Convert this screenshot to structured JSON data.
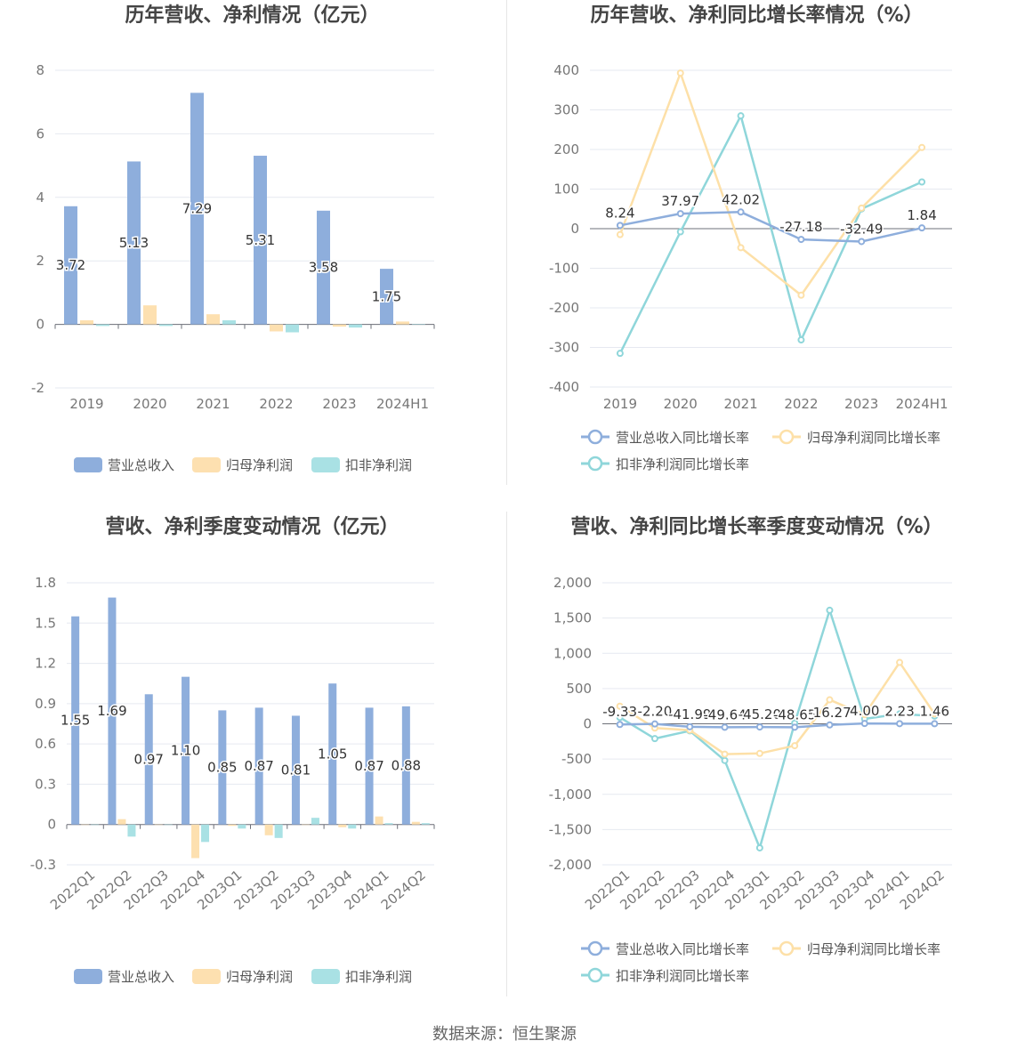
{
  "source_text": "数据来源：恒生聚源",
  "chart_data": [
    {
      "type": "bar",
      "title": "历年营收、净利情况（亿元）",
      "categories": [
        "2019",
        "2020",
        "2021",
        "2022",
        "2023",
        "2024H1"
      ],
      "ylim": [
        -2,
        8
      ],
      "yticks": [
        "-2",
        "0",
        "2",
        "4",
        "6",
        "8"
      ],
      "series": [
        {
          "name": "营业总收入",
          "color": "#8eaedc",
          "values": [
            3.72,
            5.13,
            7.29,
            5.31,
            3.58,
            1.75
          ],
          "labels": [
            "3.72",
            "5.13",
            "7.29",
            "5.31",
            "3.58",
            "1.75"
          ]
        },
        {
          "name": "归母净利润",
          "color": "#fde0b0",
          "values": [
            0.13,
            0.6,
            0.32,
            -0.22,
            -0.07,
            0.09
          ]
        },
        {
          "name": "扣非净利润",
          "color": "#a9e1e4",
          "values": [
            -0.05,
            -0.05,
            0.13,
            -0.25,
            -0.1,
            0.01
          ]
        }
      ],
      "legend_position": "bottom"
    },
    {
      "type": "line",
      "title": "历年营收、净利同比增长率情况（%）",
      "categories": [
        "2019",
        "2020",
        "2021",
        "2022",
        "2023",
        "2024H1"
      ],
      "ylim": [
        -400,
        400
      ],
      "yticks": [
        "-400",
        "-300",
        "-200",
        "-100",
        "0",
        "100",
        "200",
        "300",
        "400"
      ],
      "series": [
        {
          "name": "营业总收入同比增长率",
          "color": "#8eaedc",
          "values": [
            8.24,
            37.97,
            42.02,
            -27.18,
            -32.49,
            1.84
          ],
          "labels": [
            "8.24",
            "37.97",
            "42.02",
            "-27.18",
            "-32.49",
            "1.84"
          ]
        },
        {
          "name": "归母净利润同比增长率",
          "color": "#fde0a8",
          "values": [
            -15,
            393,
            -48,
            -168,
            52,
            205
          ]
        },
        {
          "name": "扣非净利润同比增长率",
          "color": "#8fd6da",
          "values": [
            -315,
            -8,
            285,
            -281,
            50,
            118
          ]
        }
      ],
      "legend_position": "bottom"
    },
    {
      "type": "bar",
      "title": "营收、净利季度变动情况（亿元）",
      "categories": [
        "2022Q1",
        "2022Q2",
        "2022Q3",
        "2022Q4",
        "2023Q1",
        "2023Q2",
        "2023Q3",
        "2023Q4",
        "2024Q1",
        "2024Q2"
      ],
      "ylim": [
        -0.3,
        1.8
      ],
      "yticks": [
        "-0.3",
        "0",
        "0.3",
        "0.6",
        "0.9",
        "1.2",
        "1.5",
        "1.8"
      ],
      "series": [
        {
          "name": "营业总收入",
          "color": "#8eaedc",
          "values": [
            1.55,
            1.69,
            0.97,
            1.1,
            0.85,
            0.87,
            0.81,
            1.05,
            0.87,
            0.88
          ],
          "labels": [
            "1.55",
            "1.69",
            "0.97",
            "1.10",
            "0.85",
            "0.87",
            "0.81",
            "1.05",
            "0.87",
            "0.88"
          ]
        },
        {
          "name": "归母净利润",
          "color": "#fde0b0",
          "values": [
            0,
            0.04,
            0,
            -0.25,
            -0.01,
            -0.08,
            0,
            -0.02,
            0.06,
            0.02
          ]
        },
        {
          "name": "扣非净利润",
          "color": "#a9e1e4",
          "values": [
            0,
            -0.09,
            0,
            -0.13,
            -0.03,
            -0.1,
            0.05,
            -0.03,
            0.01,
            0.01
          ]
        }
      ],
      "legend_position": "bottom"
    },
    {
      "type": "line",
      "title": "营收、净利同比增长率季度变动情况（%）",
      "categories": [
        "2022Q1",
        "2022Q2",
        "2022Q3",
        "2022Q4",
        "2023Q1",
        "2023Q2",
        "2023Q3",
        "2023Q4",
        "2024Q1",
        "2024Q2"
      ],
      "ylim": [
        -2000,
        2000
      ],
      "yticks": [
        "-2,000",
        "-1,500",
        "-1,000",
        "-500",
        "0",
        "500",
        "1,000",
        "1,500",
        "2,000"
      ],
      "series": [
        {
          "name": "营业总收入同比增长率",
          "color": "#8eaedc",
          "values": [
            -9.33,
            -2.2,
            -41.99,
            -49.64,
            -45.2,
            -48.65,
            -16.27,
            4.0,
            2.23,
            1.46
          ],
          "labels": [
            "-9.33",
            "-2.20",
            "-41.99",
            "-49.64",
            "-45.20",
            "-48.65",
            "-16.27",
            "4.00",
            "2.23",
            "1.46"
          ]
        },
        {
          "name": "归母净利润同比增长率",
          "color": "#fde0a8",
          "values": [
            250,
            -60,
            -90,
            -430,
            -420,
            -310,
            340,
            130,
            870,
            140
          ]
        },
        {
          "name": "扣非净利润同比增长率",
          "color": "#8fd6da",
          "values": [
            90,
            -210,
            -100,
            -520,
            -1760,
            10,
            1610,
            70,
            140,
            110
          ]
        }
      ],
      "legend_position": "bottom"
    }
  ]
}
